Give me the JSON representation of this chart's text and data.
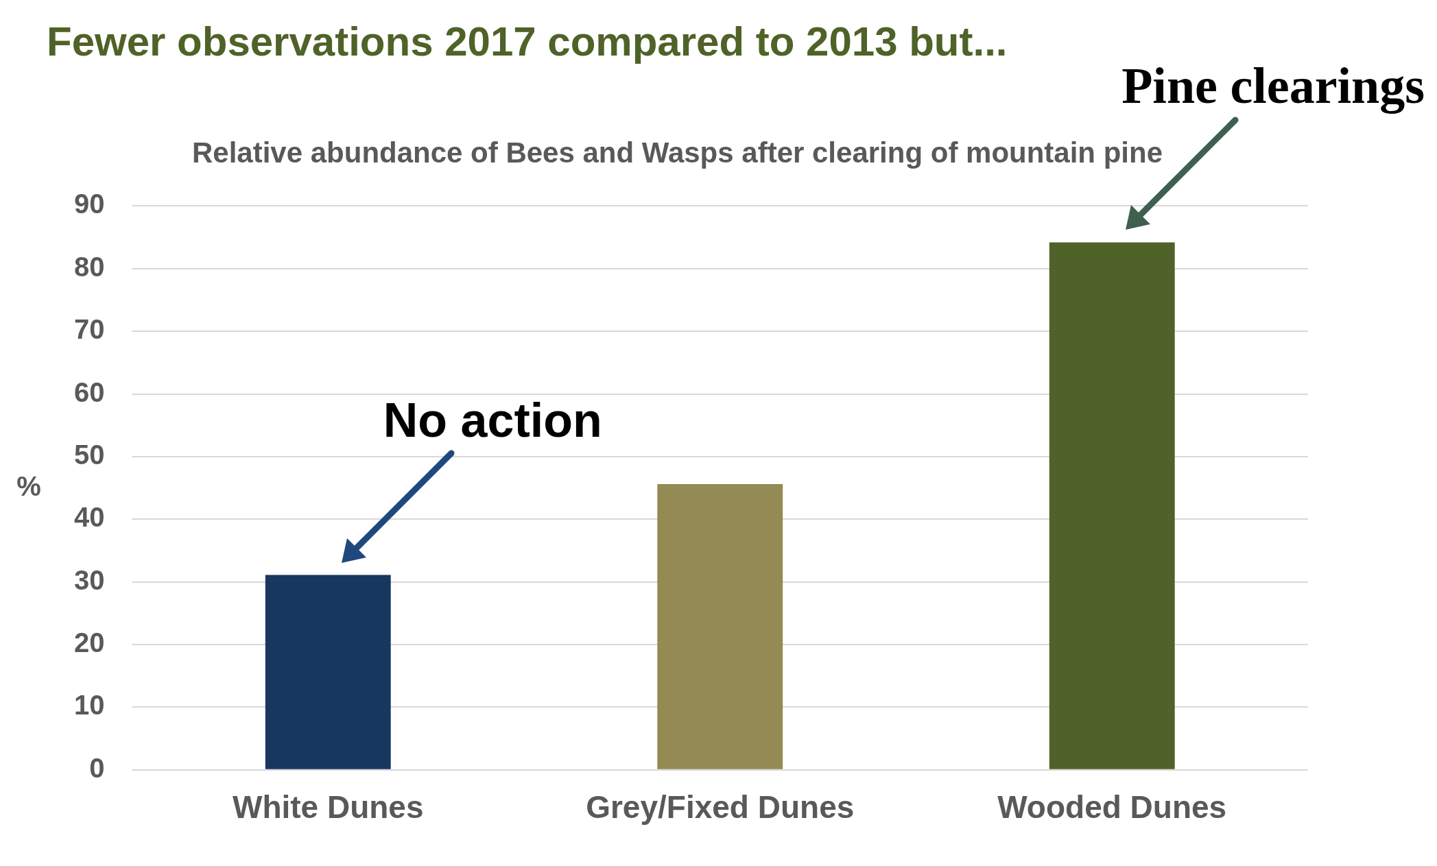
{
  "chart_data": {
    "type": "bar",
    "title": "Fewer observations 2017 compared to 2013 but...",
    "subtitle": "Relative abundance of Bees and Wasps after clearing of mountain pine",
    "ylabel": "%",
    "categories": [
      "White Dunes",
      "Grey/Fixed Dunes",
      "Wooded Dunes"
    ],
    "values": [
      31.1,
      45.6,
      84.2
    ],
    "colors": [
      "#17375e",
      "#948a54",
      "#4f6228"
    ],
    "ylim": [
      0,
      90
    ],
    "yticks": [
      0,
      10,
      20,
      30,
      40,
      50,
      60,
      70,
      80,
      90
    ],
    "grid": "y",
    "legend": false,
    "annotations": [
      {
        "text": "No action",
        "x": "White Dunes",
        "y": 31.1
      },
      {
        "text": "Pine clearings",
        "x": "Wooded Dunes",
        "y": 84.2
      }
    ]
  }
}
